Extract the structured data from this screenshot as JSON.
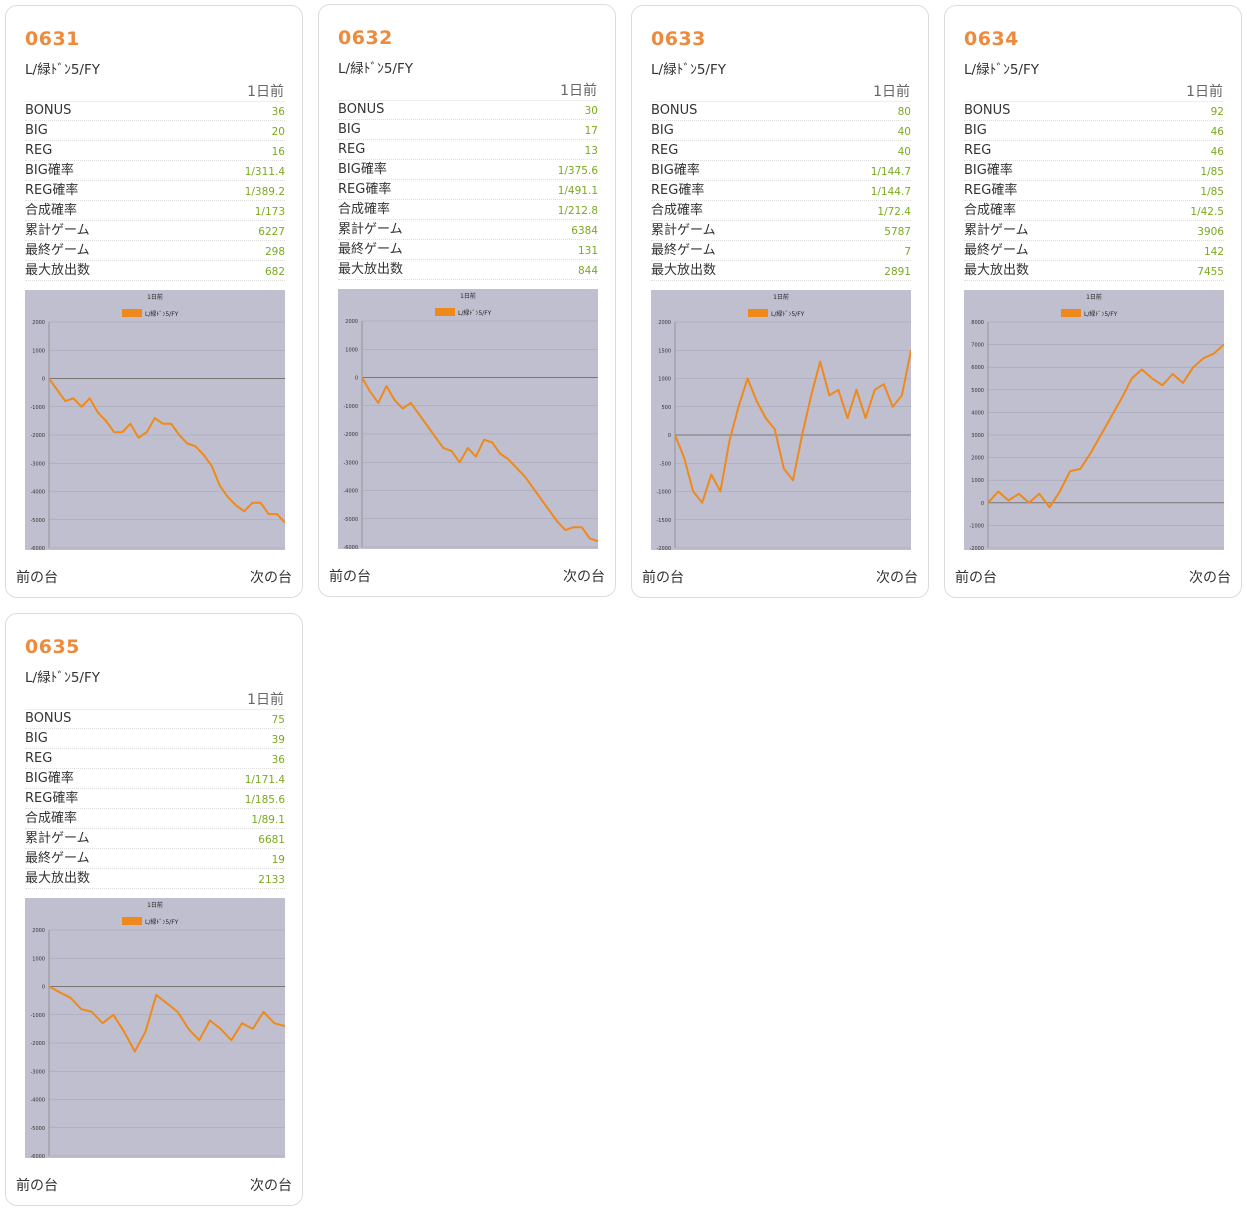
{
  "common": {
    "model": "L/緑ﾄﾞﾝ5/FY",
    "day_label": "1日前",
    "prev_label": "前の台",
    "next_label": "次の台",
    "chart_title": "1日前",
    "legend": "L/緑ﾄﾞﾝ5/FY",
    "line_color": "#ef8a1a",
    "plot_bg": "#c0bfd0"
  },
  "labels": [
    "BONUS",
    "BIG",
    "REG",
    "BIG確率",
    "REG確率",
    "合成確率",
    "累計ゲーム",
    "最終ゲーム",
    "最大放出数"
  ],
  "cards": [
    {
      "number": "0631",
      "values": [
        "36",
        "20",
        "16",
        "1/311.4",
        "1/389.2",
        "1/173",
        "6227",
        "298",
        "682"
      ],
      "chart_data": {
        "type": "line",
        "title": "1日前",
        "legend": [
          "L/緑ﾄﾞﾝ5/FY"
        ],
        "ylim": [
          -6000,
          2000
        ],
        "yticks": [
          "2000",
          "1000",
          "0",
          "-1000",
          "-2000",
          "-3000",
          "-4000",
          "-5000",
          "-6000"
        ],
        "series": [
          {
            "name": "L/緑ﾄﾞﾝ5/FY",
            "values": [
              0,
              -400,
              -800,
              -700,
              -1000,
              -700,
              -1200,
              -1500,
              -1900,
              -1900,
              -1600,
              -2100,
              -1900,
              -1400,
              -1600,
              -1600,
              -2000,
              -2300,
              -2400,
              -2700,
              -3100,
              -3800,
              -4200,
              -4500,
              -4700,
              -4400,
              -4400,
              -4800,
              -4800,
              -5100
            ]
          }
        ]
      }
    },
    {
      "number": "0632",
      "values": [
        "30",
        "17",
        "13",
        "1/375.6",
        "1/491.1",
        "1/212.8",
        "6384",
        "131",
        "844"
      ],
      "chart_data": {
        "type": "line",
        "title": "1日前",
        "legend": [
          "L/緑ﾄﾞﾝ5/FY"
        ],
        "ylim": [
          -6000,
          2000
        ],
        "yticks": [
          "2000",
          "1000",
          "0",
          "-1000",
          "-2000",
          "-3000",
          "-4000",
          "-5000",
          "-6000"
        ],
        "series": [
          {
            "name": "L/緑ﾄﾞﾝ5/FY",
            "values": [
              0,
              -500,
              -900,
              -300,
              -800,
              -1100,
              -900,
              -1300,
              -1700,
              -2100,
              -2500,
              -2600,
              -3000,
              -2500,
              -2800,
              -2200,
              -2300,
              -2700,
              -2900,
              -3200,
              -3500,
              -3900,
              -4300,
              -4700,
              -5100,
              -5400,
              -5300,
              -5300,
              -5700,
              -5800
            ]
          }
        ]
      }
    },
    {
      "number": "0633",
      "values": [
        "80",
        "40",
        "40",
        "1/144.7",
        "1/144.7",
        "1/72.4",
        "5787",
        "7",
        "2891"
      ],
      "chart_data": {
        "type": "line",
        "title": "1日前",
        "legend": [
          "L/緑ﾄﾞﾝ5/FY"
        ],
        "ylim": [
          -2000,
          2000
        ],
        "yticks": [
          "2000",
          "1500",
          "1000",
          "500",
          "0",
          "-500",
          "-1000",
          "-1500",
          "-2000"
        ],
        "series": [
          {
            "name": "L/緑ﾄﾞﾝ5/FY",
            "values": [
              0,
              -400,
              -1000,
              -1200,
              -700,
              -1000,
              -100,
              500,
              1000,
              600,
              300,
              100,
              -600,
              -800,
              0,
              700,
              1300,
              700,
              800,
              300,
              800,
              300,
              800,
              900,
              500,
              700,
              1500
            ]
          }
        ]
      }
    },
    {
      "number": "0634",
      "values": [
        "92",
        "46",
        "46",
        "1/85",
        "1/85",
        "1/42.5",
        "3906",
        "142",
        "7455"
      ],
      "chart_data": {
        "type": "line",
        "title": "1日前",
        "legend": [
          "L/緑ﾄﾞﾝ5/FY"
        ],
        "ylim": [
          -2000,
          8000
        ],
        "yticks": [
          "8000",
          "7000",
          "6000",
          "5000",
          "4000",
          "3000",
          "2000",
          "1000",
          "0",
          "-1000",
          "-2000"
        ],
        "series": [
          {
            "name": "L/緑ﾄﾞﾝ5/FY",
            "values": [
              0,
              500,
              100,
              400,
              0,
              400,
              -200,
              500,
              1400,
              1500,
              2200,
              3000,
              3800,
              4600,
              5500,
              5900,
              5500,
              5200,
              5700,
              5300,
              6000,
              6400,
              6600,
              7000
            ]
          }
        ]
      }
    },
    {
      "number": "0635",
      "values": [
        "75",
        "39",
        "36",
        "1/171.4",
        "1/185.6",
        "1/89.1",
        "6681",
        "19",
        "2133"
      ],
      "chart_data": {
        "type": "line",
        "title": "1日前",
        "legend": [
          "L/緑ﾄﾞﾝ5/FY"
        ],
        "ylim": [
          -6000,
          2000
        ],
        "yticks": [
          "2000",
          "1000",
          "0",
          "-1000",
          "-2000",
          "-3000",
          "-4000",
          "-5000",
          "-6000"
        ],
        "series": [
          {
            "name": "L/緑ﾄﾞﾝ5/FY",
            "values": [
              0,
              -200,
              -400,
              -800,
              -900,
              -1300,
              -1000,
              -1600,
              -2300,
              -1600,
              -300,
              -600,
              -900,
              -1500,
              -1900,
              -1200,
              -1500,
              -1900,
              -1300,
              -1500,
              -900,
              -1300,
              -1400
            ]
          }
        ]
      }
    }
  ]
}
